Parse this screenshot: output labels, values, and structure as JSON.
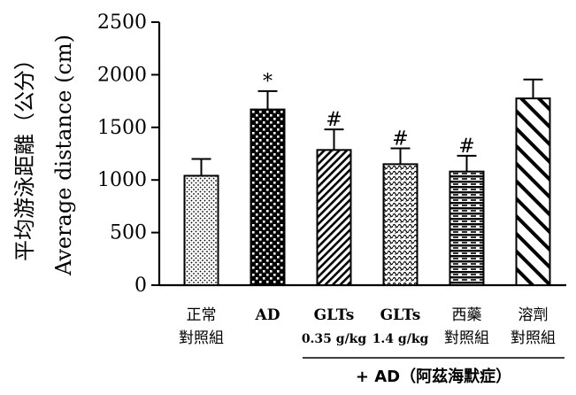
{
  "chart_data": {
    "type": "bar",
    "categories": [
      {
        "line1": "正常",
        "line2": "對照組"
      },
      {
        "line1": "AD",
        "line2": ""
      },
      {
        "line1": "GLTs",
        "line2": "0.35 g/kg"
      },
      {
        "line1": "GLTs",
        "line2": "1.4 g/kg"
      },
      {
        "line1": "西藥",
        "line2": "對照組"
      },
      {
        "line1": "溶劑",
        "line2": "對照組"
      }
    ],
    "values": [
      1040,
      1670,
      1285,
      1150,
      1080,
      1775
    ],
    "errors": [
      160,
      175,
      195,
      150,
      150,
      180
    ],
    "significance": [
      "",
      "*",
      "#",
      "#",
      "#",
      ""
    ],
    "patterns": [
      "dots",
      "checker",
      "diag-back",
      "wave",
      "brick",
      "diag-fwd"
    ],
    "ylabel_zh": "平均游泳距離（公分）",
    "ylabel_en": "Average distance (cm)",
    "ylim": [
      0,
      2500
    ],
    "yticks": [
      "0",
      "500",
      "1000",
      "1500",
      "2000",
      "2500"
    ],
    "bracket_label": "+ AD（阿茲海默症）",
    "bracket_span": [
      2,
      5
    ],
    "grid": false,
    "colors": {
      "bar": "#000000",
      "background": "#ffffff"
    }
  }
}
